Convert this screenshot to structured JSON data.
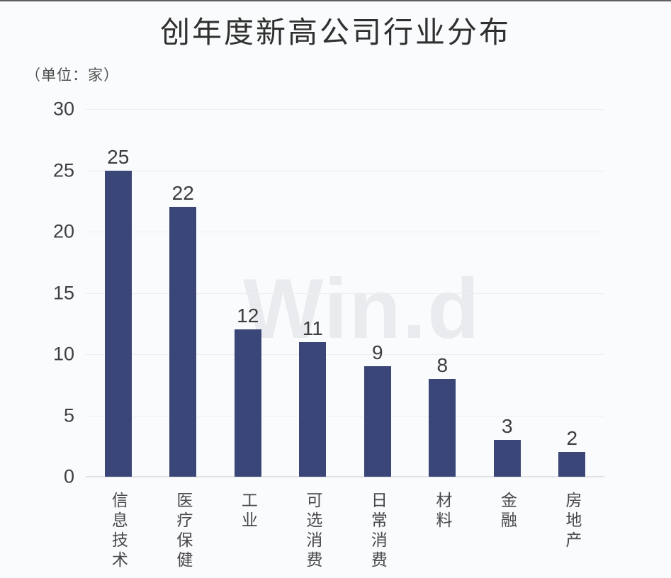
{
  "page": {
    "background": "#fafbfc",
    "top_border_color": "#5f5f5f"
  },
  "chart_data": {
    "type": "bar",
    "title": "创年度新高公司行业分布",
    "unit_label": "（单位：家）",
    "categories": [
      "信息技术",
      "医疗保健",
      "工业",
      "可选消费",
      "日常消费",
      "材料",
      "金融",
      "房地产"
    ],
    "values": [
      25,
      22,
      12,
      11,
      9,
      8,
      3,
      2
    ],
    "y_ticks": [
      30,
      25,
      20,
      15,
      10,
      5,
      0
    ],
    "ylim": [
      0,
      30
    ],
    "xlabel": "",
    "ylabel": "",
    "grid": true,
    "legend": "none",
    "bar_color": "#3A4677",
    "grid_color": "#eeeef0",
    "watermark": "Win.d",
    "watermark_color": "#e9ebee",
    "value_labels_shown": true,
    "x_label_orientation": "vertical"
  }
}
